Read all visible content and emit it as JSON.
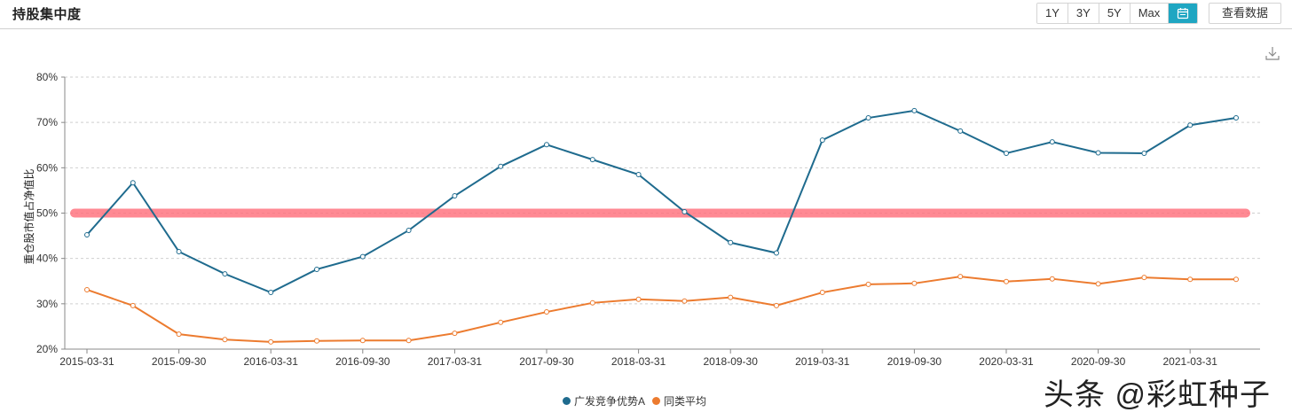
{
  "header": {
    "title": "持股集中度",
    "range_buttons": [
      "1Y",
      "3Y",
      "5Y",
      "Max"
    ],
    "calendar_icon": "calendar-icon",
    "active_button": "calendar",
    "accent_color": "#1fa6c2",
    "view_data_label": "查看数据",
    "download_icon": "download-icon"
  },
  "legend": {
    "items": [
      {
        "label": "广发竞争优势A",
        "color": "#1f6b8e"
      },
      {
        "label": "同类平均",
        "color": "#ec7b2f"
      }
    ]
  },
  "watermark": "头条 @彩虹种子",
  "chart_data": {
    "type": "line",
    "title": "持股集中度",
    "xlabel": "",
    "ylabel": "重仓股市值占净值比",
    "ylim": [
      20,
      80
    ],
    "yticks": [
      "20%",
      "30%",
      "40%",
      "50%",
      "60%",
      "70%",
      "80%"
    ],
    "xtick_labels": [
      "2015-03-31",
      "2015-09-30",
      "2016-03-31",
      "2016-09-30",
      "2017-03-31",
      "2017-09-30",
      "2018-03-31",
      "2018-09-30",
      "2019-03-31",
      "2019-09-30",
      "2020-03-31",
      "2020-09-30",
      "2021-03-31"
    ],
    "grid": true,
    "legend_position": "bottom",
    "x": [
      "2015-03-31",
      "2015-06-30",
      "2015-09-30",
      "2015-12-31",
      "2016-03-31",
      "2016-06-30",
      "2016-09-30",
      "2016-12-31",
      "2017-03-31",
      "2017-06-30",
      "2017-09-30",
      "2017-12-31",
      "2018-03-31",
      "2018-06-30",
      "2018-09-30",
      "2018-12-31",
      "2019-03-31",
      "2019-06-30",
      "2019-09-30",
      "2019-12-31",
      "2020-03-31",
      "2020-06-30",
      "2020-09-30",
      "2020-12-31",
      "2021-03-31",
      "2021-06-30"
    ],
    "series": [
      {
        "name": "广发竞争优势A",
        "color": "#1f6b8e",
        "values": [
          45.2,
          56.7,
          41.5,
          36.6,
          32.5,
          37.6,
          40.4,
          46.2,
          53.8,
          60.3,
          65.1,
          61.8,
          58.5,
          50.3,
          43.5,
          41.2,
          66.1,
          71.0,
          72.6,
          68.1,
          63.2,
          65.7,
          63.3,
          63.2,
          69.4,
          71.0
        ]
      },
      {
        "name": "同类平均",
        "color": "#ec7b2f",
        "values": [
          33.1,
          29.6,
          23.3,
          22.1,
          21.6,
          21.8,
          21.9,
          21.9,
          23.5,
          25.9,
          28.2,
          30.2,
          31.0,
          30.6,
          31.4,
          29.6,
          32.5,
          34.3,
          34.5,
          36.0,
          34.9,
          35.5,
          34.4,
          35.8,
          35.4,
          35.4
        ]
      }
    ],
    "reference_line": {
      "value": 50,
      "color": "#ff6b78"
    }
  }
}
